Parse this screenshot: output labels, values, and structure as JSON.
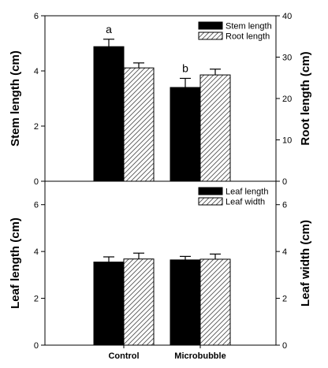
{
  "chart_data": [
    {
      "type": "bar",
      "categories": [
        "Control",
        "Microbubble"
      ],
      "ylabel": "Stem length (cm)",
      "ylim": [
        0,
        6
      ],
      "yticks": [
        0,
        2,
        4,
        6
      ],
      "y2label": "Root length (cm)",
      "y2lim": [
        0,
        40
      ],
      "y2ticks": [
        0,
        10,
        20,
        30,
        40
      ],
      "series": [
        {
          "name": "Stem length",
          "axis": "left",
          "pattern": "solid",
          "values": [
            4.88,
            3.4
          ],
          "errors": [
            0.27,
            0.33
          ]
        },
        {
          "name": "Root length",
          "axis": "right",
          "pattern": "hatch",
          "values": [
            27.4,
            25.7
          ],
          "errors": [
            1.2,
            1.4
          ]
        }
      ],
      "annotations": [
        {
          "category": "Control",
          "series": "Stem length",
          "text": "a"
        },
        {
          "category": "Microbubble",
          "series": "Stem length",
          "text": "b"
        }
      ],
      "legend": "top-right"
    },
    {
      "type": "bar",
      "categories": [
        "Control",
        "Microbubble"
      ],
      "ylabel": "Leaf length (cm)",
      "ylim": [
        0,
        7
      ],
      "yticks": [
        0,
        2,
        4,
        6
      ],
      "y2label": "Leaf width (cm)",
      "y2lim": [
        0,
        7
      ],
      "y2ticks": [
        0,
        2,
        4,
        6
      ],
      "series": [
        {
          "name": "Leaf length",
          "axis": "left",
          "pattern": "solid",
          "values": [
            3.55,
            3.64
          ],
          "errors": [
            0.22,
            0.15
          ]
        },
        {
          "name": "Leaf width",
          "axis": "right",
          "pattern": "hatch",
          "values": [
            3.68,
            3.67
          ],
          "errors": [
            0.25,
            0.22
          ]
        }
      ],
      "legend": "top-right"
    }
  ]
}
